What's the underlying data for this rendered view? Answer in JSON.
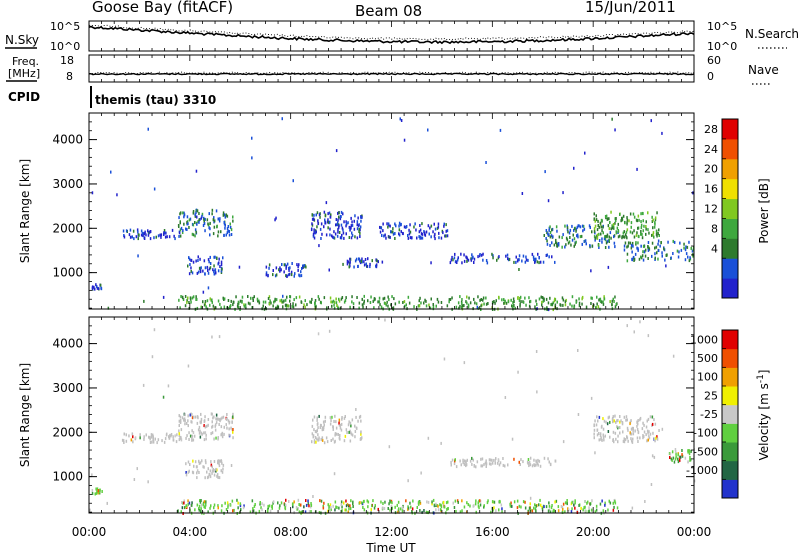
{
  "header": {
    "station": "Goose Bay (fitACF)",
    "beam": "Beam 08",
    "date": "15/Jun/2011"
  },
  "colors": {
    "power_scale": [
      "#2222cc",
      "#1a50d8",
      "#2e7a2e",
      "#3ea83e",
      "#80c820",
      "#f0e000",
      "#f0a000",
      "#f05000",
      "#e00000"
    ],
    "velocity_scale": [
      "#2233cc",
      "#226644",
      "#3a9a3a",
      "#60d040",
      "#c8c8c8",
      "#f0f000",
      "#f0a000",
      "#f05000",
      "#e00000"
    ],
    "ground_scatter": "#c0c0c0"
  },
  "strip_panels": {
    "nsky": {
      "left_label": "N.Sky",
      "left_ticks": [
        "10^5",
        "10^0"
      ],
      "right_ticks": [
        "10^5",
        "10^0"
      ],
      "right_label": "N.Search"
    },
    "freq": {
      "left_label_top": "Freq.",
      "left_label_bottom": "[MHz]",
      "left_ticks": [
        "18",
        "8"
      ],
      "right_ticks": [
        "60",
        "0"
      ],
      "right_label": "Nave"
    },
    "cpid": {
      "label": "CPID",
      "value": "themis (tau) 3310"
    }
  },
  "chart_data": [
    {
      "type": "heatmap",
      "name": "power",
      "ylabel": "Slant Range [km]",
      "ylim": [
        180,
        4600
      ],
      "yticks": [
        "4000",
        "3000",
        "2000",
        "1000"
      ],
      "xlim": [
        0,
        24
      ],
      "colorbar": {
        "label": "Power [dB]",
        "ticks": [
          "28",
          "24",
          "20",
          "16",
          "12",
          "8",
          "4"
        ],
        "range": [
          0,
          30
        ]
      },
      "features": [
        {
          "t": [
            0.1,
            0.5
          ],
          "range": [
            640,
            780
          ],
          "level": 8
        },
        {
          "t": [
            1.3,
            3.6
          ],
          "range": [
            1800,
            2000
          ],
          "level": 8
        },
        {
          "t": [
            3.5,
            5.7
          ],
          "range": [
            1850,
            2450
          ],
          "level": 12
        },
        {
          "t": [
            3.8,
            5.3
          ],
          "range": [
            1000,
            1400
          ],
          "level": 8
        },
        {
          "t": [
            7.0,
            8.6
          ],
          "range": [
            950,
            1250
          ],
          "level": 8
        },
        {
          "t": [
            8.8,
            10.8
          ],
          "range": [
            1800,
            2400
          ],
          "level": 8
        },
        {
          "t": [
            10.0,
            11.7
          ],
          "range": [
            1150,
            1350
          ],
          "level": 8
        },
        {
          "t": [
            11.5,
            14.2
          ],
          "range": [
            1800,
            2150
          ],
          "level": 8
        },
        {
          "t": [
            14.3,
            18.5
          ],
          "range": [
            1250,
            1450
          ],
          "level": 8
        },
        {
          "t": [
            18.0,
            21.0
          ],
          "range": [
            1600,
            2100
          ],
          "level": 12
        },
        {
          "t": [
            20.0,
            22.6
          ],
          "range": [
            1800,
            2400
          ],
          "level": 16
        },
        {
          "t": [
            21.2,
            24.0
          ],
          "range": [
            1300,
            1750
          ],
          "level": 12
        },
        {
          "t": [
            3.5,
            21.0
          ],
          "range": [
            200,
            500
          ],
          "level": 16
        }
      ]
    },
    {
      "type": "heatmap",
      "name": "velocity",
      "ylabel": "Slant Range [km]",
      "ylim": [
        180,
        4600
      ],
      "yticks": [
        "4000",
        "3000",
        "2000",
        "1000"
      ],
      "xlim": [
        0,
        24
      ],
      "xlabel": "Time UT",
      "xticks": [
        "00:00",
        "04:00",
        "08:00",
        "12:00",
        "16:00",
        "20:00",
        "00:00"
      ],
      "colorbar": {
        "label": "Velocity [m s^-1]",
        "ticks": [
          "1000",
          "500",
          "100",
          "25",
          "-25",
          "-100",
          "-500",
          "-1000"
        ]
      },
      "features": [
        {
          "t": [
            0.1,
            0.5
          ],
          "range": [
            640,
            780
          ],
          "velocity": 100
        },
        {
          "t": [
            1.3,
            3.6
          ],
          "range": [
            1800,
            2000
          ],
          "velocity": 0
        },
        {
          "t": [
            3.5,
            5.7
          ],
          "range": [
            1850,
            2450
          ],
          "velocity": 0
        },
        {
          "t": [
            3.8,
            5.3
          ],
          "range": [
            1000,
            1400
          ],
          "velocity": 0
        },
        {
          "t": [
            8.8,
            10.8
          ],
          "range": [
            1800,
            2400
          ],
          "velocity": 0
        },
        {
          "t": [
            14.3,
            18.5
          ],
          "range": [
            1250,
            1450
          ],
          "velocity": 0
        },
        {
          "t": [
            20.0,
            22.6
          ],
          "range": [
            1800,
            2400
          ],
          "velocity": 0
        },
        {
          "t": [
            23.0,
            24.0
          ],
          "range": [
            1350,
            1650
          ],
          "velocity": 100
        },
        {
          "t": [
            3.5,
            21.0
          ],
          "range": [
            200,
            500
          ],
          "velocity": 100
        }
      ]
    }
  ]
}
